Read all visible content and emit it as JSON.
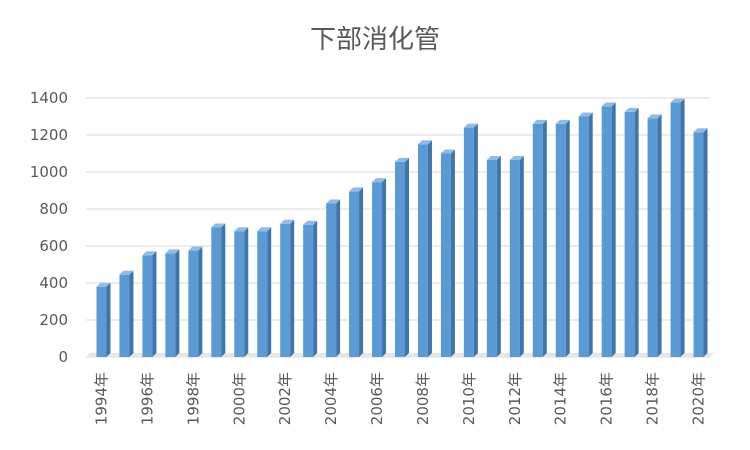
{
  "chart_data": {
    "type": "bar",
    "title": "下部消化管",
    "xlabel": "",
    "ylabel": "",
    "ylim": [
      0,
      1400
    ],
    "yticks": [
      0,
      200,
      400,
      600,
      800,
      1000,
      1200,
      1400
    ],
    "grid": true,
    "legend": "none",
    "bar_color": "#5b9bd5",
    "categories": [
      "1994年",
      "1995年",
      "1996年",
      "1997年",
      "1998年",
      "1999年",
      "2000年",
      "2001年",
      "2002年",
      "2003年",
      "2004年",
      "2005年",
      "2006年",
      "2007年",
      "2008年",
      "2009年",
      "2010年",
      "2011年",
      "2012年",
      "2013年",
      "2014年",
      "2015年",
      "2016年",
      "2017年",
      "2018年",
      "2019年",
      "2020年"
    ],
    "tick_labels": [
      "1994年",
      "1996年",
      "1998年",
      "2000年",
      "2002年",
      "2004年",
      "2006年",
      "2008年",
      "2010年",
      "2012年",
      "2014年",
      "2016年",
      "2018年",
      "2020年"
    ],
    "values": [
      380,
      445,
      550,
      560,
      575,
      700,
      680,
      680,
      720,
      715,
      830,
      895,
      945,
      1055,
      1150,
      1100,
      1240,
      1065,
      1065,
      1260,
      1260,
      1300,
      1355,
      1325,
      1290,
      1375,
      1215
    ]
  }
}
